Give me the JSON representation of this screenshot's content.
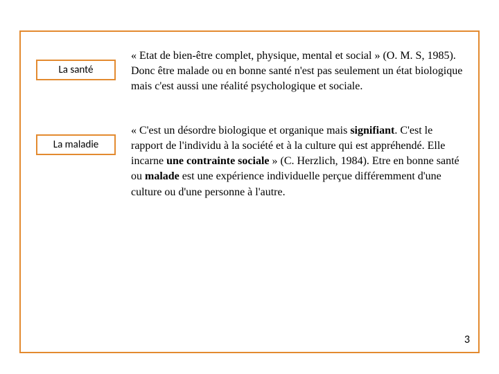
{
  "frame": {
    "border_color": "#e38a2f",
    "background": "#ffffff"
  },
  "entries": [
    {
      "label": "La santé",
      "definition_html": "« Etat de bien-être complet, physique, mental et social » (O. M. S, 1985). Donc être malade ou en bonne santé n'est pas seulement un état  biologique mais c'est aussi une  réalité psychologique et sociale."
    },
    {
      "label": "La maladie",
      "definition_html": "« C'est un désordre biologique et organique mais <b>signifiant</b>. C'est le rapport de l'individu à la société et à la culture qui est appréhendé. Elle incarne <b>une contrainte sociale</b> » (C. Herzlich, 1984). Etre en bonne santé ou <b>malade</b> est une expérience individuelle perçue différemment d'une culture ou d'une personne à l'autre."
    }
  ],
  "page_number": "3",
  "typography": {
    "label_font": "Calibri",
    "label_fontsize": 15,
    "def_font_serif": "Georgia",
    "def_font_sans": "Calibri",
    "def_fontsize": 16
  }
}
